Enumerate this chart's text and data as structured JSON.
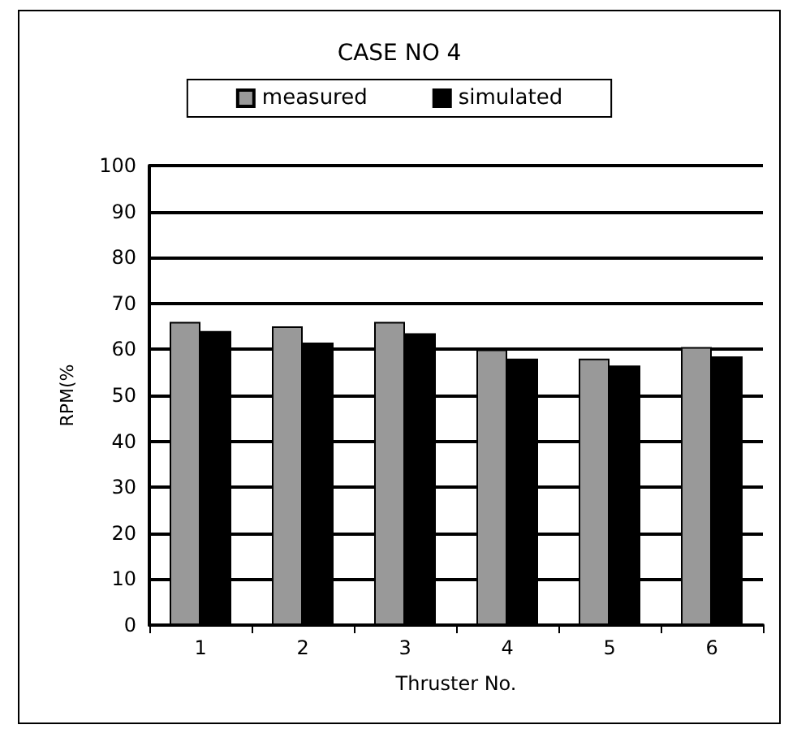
{
  "chart_data": {
    "type": "bar",
    "title": "CASE NO 4",
    "xlabel": "Thruster No.",
    "ylabel": "RPM(%",
    "categories": [
      "1",
      "2",
      "3",
      "4",
      "5",
      "6"
    ],
    "series": [
      {
        "name": "measured",
        "color": "#999999",
        "values": [
          66,
          65,
          66,
          60,
          58,
          60.5
        ]
      },
      {
        "name": "simulated",
        "color": "#000000",
        "values": [
          64,
          61.5,
          63.5,
          58,
          56.5,
          58.5
        ]
      }
    ],
    "ylim": [
      0,
      100
    ],
    "yticks": [
      0,
      10,
      20,
      30,
      40,
      50,
      60,
      70,
      80,
      90,
      100
    ],
    "grid": "y",
    "legend": "top"
  }
}
